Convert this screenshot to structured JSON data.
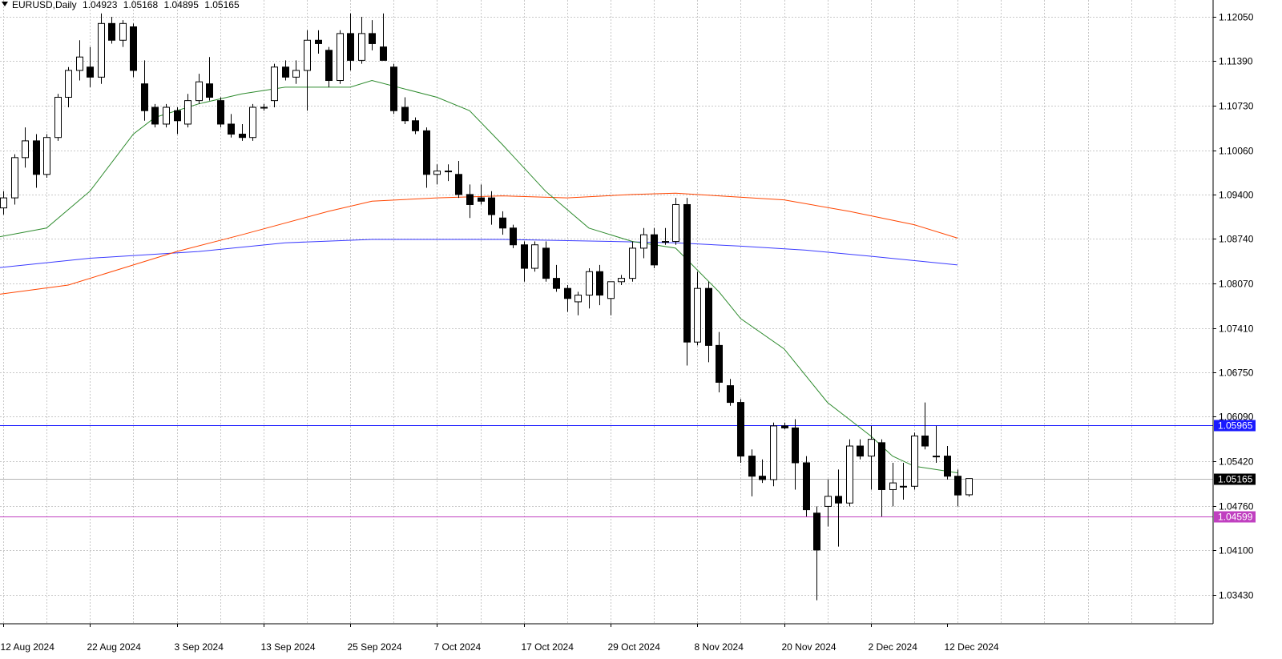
{
  "header": {
    "symbol": "EURUSD,Daily",
    "open": "1.04923",
    "high": "1.05168",
    "low": "1.04895",
    "close": "1.05165"
  },
  "colors": {
    "background": "#ffffff",
    "grid": "#c8c8c8",
    "bull_body": "#ffffff",
    "bear_body": "#000000",
    "ma_short": "#2e8b2e",
    "ma_mid": "#ff4500",
    "ma_long": "#3a3aff",
    "hline_upper": "#1a1aff",
    "hline_lower": "#c040c0",
    "hline_current": "#b4b4b4"
  },
  "chart_data": {
    "type": "candlestick",
    "y_range": [
      1.03,
      1.123
    ],
    "x_labels": [
      {
        "label": "12 Aug 2024",
        "index": 0
      },
      {
        "label": "22 Aug 2024",
        "index": 8
      },
      {
        "label": "3 Sep 2024",
        "index": 16
      },
      {
        "label": "13 Sep 2024",
        "index": 24
      },
      {
        "label": "25 Sep 2024",
        "index": 32
      },
      {
        "label": "7 Oct 2024",
        "index": 40
      },
      {
        "label": "17 Oct 2024",
        "index": 48
      },
      {
        "label": "29 Oct 2024",
        "index": 56
      },
      {
        "label": "8 Nov 2024",
        "index": 64
      },
      {
        "label": "20 Nov 2024",
        "index": 72
      },
      {
        "label": "2 Dec 2024",
        "index": 80
      },
      {
        "label": "12 Dec 2024",
        "index": 87
      }
    ],
    "y_ticks": [
      "1.03430",
      "1.04100",
      "1.04760",
      "1.05420",
      "1.06090",
      "1.06750",
      "1.07410",
      "1.08070",
      "1.08740",
      "1.09400",
      "1.10060",
      "1.10730",
      "1.11390",
      "1.12050"
    ],
    "candles": [
      {
        "o": 1.092,
        "h": 1.0945,
        "l": 1.091,
        "c": 1.0935
      },
      {
        "o": 1.0935,
        "h": 1.1,
        "l": 1.0925,
        "c": 1.0995
      },
      {
        "o": 1.0995,
        "h": 1.104,
        "l": 1.098,
        "c": 1.102
      },
      {
        "o": 1.102,
        "h": 1.103,
        "l": 1.095,
        "c": 1.097
      },
      {
        "o": 1.097,
        "h": 1.103,
        "l": 1.0965,
        "c": 1.1025
      },
      {
        "o": 1.1025,
        "h": 1.109,
        "l": 1.102,
        "c": 1.1085
      },
      {
        "o": 1.1085,
        "h": 1.113,
        "l": 1.107,
        "c": 1.1125
      },
      {
        "o": 1.1125,
        "h": 1.117,
        "l": 1.111,
        "c": 1.1145
      },
      {
        "o": 1.113,
        "h": 1.116,
        "l": 1.11,
        "c": 1.1115
      },
      {
        "o": 1.1115,
        "h": 1.121,
        "l": 1.1105,
        "c": 1.1195
      },
      {
        "o": 1.1195,
        "h": 1.1205,
        "l": 1.1165,
        "c": 1.117
      },
      {
        "o": 1.117,
        "h": 1.12,
        "l": 1.116,
        "c": 1.1195
      },
      {
        "o": 1.119,
        "h": 1.1195,
        "l": 1.1115,
        "c": 1.1125
      },
      {
        "o": 1.1105,
        "h": 1.114,
        "l": 1.105,
        "c": 1.1065
      },
      {
        "o": 1.107,
        "h": 1.1075,
        "l": 1.104,
        "c": 1.1045
      },
      {
        "o": 1.1045,
        "h": 1.1075,
        "l": 1.104,
        "c": 1.107
      },
      {
        "o": 1.1065,
        "h": 1.107,
        "l": 1.103,
        "c": 1.105
      },
      {
        "o": 1.1045,
        "h": 1.109,
        "l": 1.104,
        "c": 1.108
      },
      {
        "o": 1.108,
        "h": 1.112,
        "l": 1.1075,
        "c": 1.1108
      },
      {
        "o": 1.1105,
        "h": 1.1145,
        "l": 1.108,
        "c": 1.1085
      },
      {
        "o": 1.108,
        "h": 1.1085,
        "l": 1.104,
        "c": 1.1045
      },
      {
        "o": 1.1045,
        "h": 1.106,
        "l": 1.1025,
        "c": 1.103
      },
      {
        "o": 1.103,
        "h": 1.1045,
        "l": 1.102,
        "c": 1.1025
      },
      {
        "o": 1.1025,
        "h": 1.1075,
        "l": 1.102,
        "c": 1.107
      },
      {
        "o": 1.107,
        "h": 1.1075,
        "l": 1.1065,
        "c": 1.107
      },
      {
        "o": 1.108,
        "h": 1.1135,
        "l": 1.107,
        "c": 1.113
      },
      {
        "o": 1.113,
        "h": 1.114,
        "l": 1.111,
        "c": 1.1115
      },
      {
        "o": 1.1115,
        "h": 1.114,
        "l": 1.1105,
        "c": 1.1125
      },
      {
        "o": 1.1125,
        "h": 1.1185,
        "l": 1.1065,
        "c": 1.117
      },
      {
        "o": 1.117,
        "h": 1.1185,
        "l": 1.115,
        "c": 1.1165
      },
      {
        "o": 1.1155,
        "h": 1.116,
        "l": 1.11,
        "c": 1.111
      },
      {
        "o": 1.111,
        "h": 1.1185,
        "l": 1.1105,
        "c": 1.118
      },
      {
        "o": 1.118,
        "h": 1.121,
        "l": 1.1125,
        "c": 1.114
      },
      {
        "o": 1.114,
        "h": 1.1205,
        "l": 1.1135,
        "c": 1.118
      },
      {
        "o": 1.118,
        "h": 1.12,
        "l": 1.1155,
        "c": 1.1165
      },
      {
        "o": 1.116,
        "h": 1.121,
        "l": 1.114,
        "c": 1.114
      },
      {
        "o": 1.113,
        "h": 1.1135,
        "l": 1.106,
        "c": 1.1065
      },
      {
        "o": 1.107,
        "h": 1.1085,
        "l": 1.1045,
        "c": 1.105
      },
      {
        "o": 1.105,
        "h": 1.1055,
        "l": 1.103,
        "c": 1.1035
      },
      {
        "o": 1.1035,
        "h": 1.104,
        "l": 1.095,
        "c": 1.097
      },
      {
        "o": 1.097,
        "h": 1.0985,
        "l": 1.0955,
        "c": 1.0975
      },
      {
        "o": 1.0975,
        "h": 1.0985,
        "l": 1.096,
        "c": 1.0975
      },
      {
        "o": 1.097,
        "h": 1.099,
        "l": 1.0935,
        "c": 1.094
      },
      {
        "o": 1.094,
        "h": 1.0955,
        "l": 1.0905,
        "c": 1.0925
      },
      {
        "o": 1.0935,
        "h": 1.0955,
        "l": 1.0925,
        "c": 1.093
      },
      {
        "o": 1.0935,
        "h": 1.0945,
        "l": 1.0895,
        "c": 1.091
      },
      {
        "o": 1.0905,
        "h": 1.0915,
        "l": 1.088,
        "c": 1.089
      },
      {
        "o": 1.089,
        "h": 1.0895,
        "l": 1.086,
        "c": 1.0865
      },
      {
        "o": 1.0865,
        "h": 1.087,
        "l": 1.081,
        "c": 1.083
      },
      {
        "o": 1.083,
        "h": 1.087,
        "l": 1.0825,
        "c": 1.0865
      },
      {
        "o": 1.086,
        "h": 1.087,
        "l": 1.081,
        "c": 1.0815
      },
      {
        "o": 1.0815,
        "h": 1.0835,
        "l": 1.0795,
        "c": 1.08
      },
      {
        "o": 1.08,
        "h": 1.0805,
        "l": 1.0765,
        "c": 1.0785
      },
      {
        "o": 1.078,
        "h": 1.0795,
        "l": 1.076,
        "c": 1.079
      },
      {
        "o": 1.079,
        "h": 1.083,
        "l": 1.077,
        "c": 1.0825
      },
      {
        "o": 1.0825,
        "h": 1.0835,
        "l": 1.0775,
        "c": 1.079
      },
      {
        "o": 1.0785,
        "h": 1.081,
        "l": 1.076,
        "c": 1.081
      },
      {
        "o": 1.081,
        "h": 1.082,
        "l": 1.0805,
        "c": 1.0815
      },
      {
        "o": 1.0815,
        "h": 1.087,
        "l": 1.081,
        "c": 1.086
      },
      {
        "o": 1.086,
        "h": 1.089,
        "l": 1.0845,
        "c": 1.088
      },
      {
        "o": 1.088,
        "h": 1.089,
        "l": 1.083,
        "c": 1.0835
      },
      {
        "o": 1.087,
        "h": 1.089,
        "l": 1.0865,
        "c": 1.087
      },
      {
        "o": 1.087,
        "h": 1.0935,
        "l": 1.0865,
        "c": 1.0925
      },
      {
        "o": 1.0925,
        "h": 1.0935,
        "l": 1.0685,
        "c": 1.072
      },
      {
        "o": 1.072,
        "h": 1.0825,
        "l": 1.0715,
        "c": 1.08
      },
      {
        "o": 1.08,
        "h": 1.081,
        "l": 1.069,
        "c": 1.0715
      },
      {
        "o": 1.0715,
        "h": 1.0735,
        "l": 1.0645,
        "c": 1.066
      },
      {
        "o": 1.0655,
        "h": 1.0665,
        "l": 1.0625,
        "c": 1.063
      },
      {
        "o": 1.063,
        "h": 1.0635,
        "l": 1.054,
        "c": 1.055
      },
      {
        "o": 1.055,
        "h": 1.056,
        "l": 1.049,
        "c": 1.052
      },
      {
        "o": 1.052,
        "h": 1.0545,
        "l": 1.051,
        "c": 1.0515
      },
      {
        "o": 1.0515,
        "h": 1.06,
        "l": 1.0505,
        "c": 1.0595
      },
      {
        "o": 1.0595,
        "h": 1.06,
        "l": 1.059,
        "c": 1.0592
      },
      {
        "o": 1.0592,
        "h": 1.0605,
        "l": 1.05,
        "c": 1.054
      },
      {
        "o": 1.054,
        "h": 1.055,
        "l": 1.046,
        "c": 1.047
      },
      {
        "o": 1.0465,
        "h": 1.0475,
        "l": 1.0335,
        "c": 1.041
      },
      {
        "o": 1.0475,
        "h": 1.0515,
        "l": 1.0445,
        "c": 1.049
      },
      {
        "o": 1.049,
        "h": 1.053,
        "l": 1.0415,
        "c": 1.048
      },
      {
        "o": 1.048,
        "h": 1.0575,
        "l": 1.0475,
        "c": 1.0565
      },
      {
        "o": 1.0565,
        "h": 1.0575,
        "l": 1.0545,
        "c": 1.055
      },
      {
        "o": 1.055,
        "h": 1.0595,
        "l": 1.05,
        "c": 1.0575
      },
      {
        "o": 1.057,
        "h": 1.0575,
        "l": 1.046,
        "c": 1.05
      },
      {
        "o": 1.05,
        "h": 1.054,
        "l": 1.0475,
        "c": 1.051
      },
      {
        "o": 1.0505,
        "h": 1.054,
        "l": 1.0485,
        "c": 1.0505
      },
      {
        "o": 1.0505,
        "h": 1.0585,
        "l": 1.05,
        "c": 1.058
      },
      {
        "o": 1.058,
        "h": 1.063,
        "l": 1.056,
        "c": 1.0565
      },
      {
        "o": 1.055,
        "h": 1.0595,
        "l": 1.054,
        "c": 1.055
      },
      {
        "o": 1.055,
        "h": 1.0565,
        "l": 1.0515,
        "c": 1.052
      },
      {
        "o": 1.052,
        "h": 1.053,
        "l": 1.0475,
        "c": 1.0492
      },
      {
        "o": 1.04923,
        "h": 1.05168,
        "l": 1.04895,
        "c": 1.05165
      }
    ],
    "ma_short": [
      [
        -1,
        1.0875
      ],
      [
        4,
        1.089
      ],
      [
        8,
        1.0945
      ],
      [
        12,
        1.103
      ],
      [
        14,
        1.1055
      ],
      [
        18,
        1.1075
      ],
      [
        22,
        1.109
      ],
      [
        26,
        1.11
      ],
      [
        32,
        1.11
      ],
      [
        34,
        1.111
      ],
      [
        40,
        1.1085
      ],
      [
        43,
        1.1065
      ],
      [
        46,
        1.1015
      ],
      [
        50,
        1.0945
      ],
      [
        54,
        1.089
      ],
      [
        58,
        1.087
      ],
      [
        62,
        1.086
      ],
      [
        66,
        1.0795
      ],
      [
        68,
        1.0755
      ],
      [
        72,
        1.071
      ],
      [
        76,
        1.063
      ],
      [
        80,
        1.058
      ],
      [
        82,
        1.055
      ],
      [
        84,
        1.0535
      ],
      [
        88,
        1.0525
      ]
    ],
    "ma_mid": [
      [
        -1,
        1.079
      ],
      [
        6,
        1.0805
      ],
      [
        12,
        1.0835
      ],
      [
        16,
        1.0855
      ],
      [
        22,
        1.088
      ],
      [
        30,
        1.0915
      ],
      [
        34,
        1.093
      ],
      [
        40,
        1.0935
      ],
      [
        46,
        1.0938
      ],
      [
        52,
        1.0935
      ],
      [
        58,
        1.094
      ],
      [
        62,
        1.0942
      ],
      [
        66,
        1.0938
      ],
      [
        72,
        1.0932
      ],
      [
        78,
        1.0915
      ],
      [
        84,
        1.0895
      ],
      [
        88,
        1.0875
      ]
    ],
    "ma_long": [
      [
        -1,
        1.083
      ],
      [
        8,
        1.0845
      ],
      [
        18,
        1.0855
      ],
      [
        26,
        1.0868
      ],
      [
        34,
        1.0873
      ],
      [
        46,
        1.0873
      ],
      [
        56,
        1.087
      ],
      [
        62,
        1.0868
      ],
      [
        68,
        1.0863
      ],
      [
        74,
        1.0857
      ],
      [
        80,
        1.0848
      ],
      [
        88,
        1.0835
      ]
    ],
    "hlines": [
      {
        "price": 1.05965,
        "label": "1.05965",
        "kind": "upper"
      },
      {
        "price": 1.04599,
        "label": "1.04599",
        "kind": "lower"
      },
      {
        "price": 1.05165,
        "label": "1.05165",
        "kind": "current"
      }
    ]
  }
}
